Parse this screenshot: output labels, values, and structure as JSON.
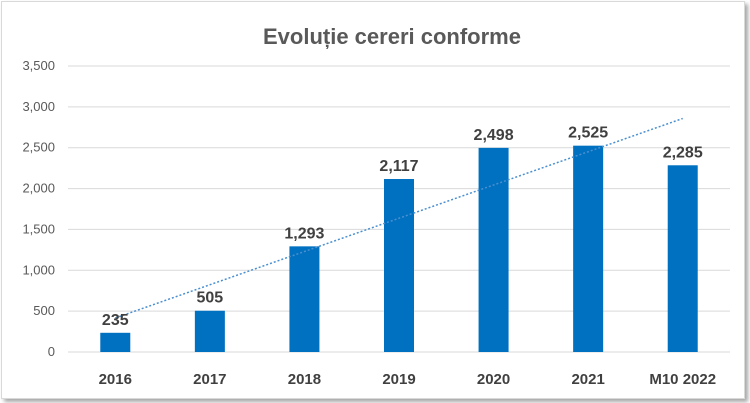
{
  "chart_data": {
    "type": "bar",
    "title": "Evoluție cereri conforme",
    "categories": [
      "2016",
      "2017",
      "2018",
      "2019",
      "2020",
      "2021",
      "M10 2022"
    ],
    "values": [
      235,
      505,
      1293,
      2117,
      2498,
      2525,
      2285
    ],
    "data_labels": [
      "235",
      "505",
      "1,293",
      "2,117",
      "2,498",
      "2,525",
      "2,285"
    ],
    "ylim": [
      0,
      3500
    ],
    "yticks": [
      0,
      500,
      1000,
      1500,
      2000,
      2500,
      3000,
      3500
    ],
    "ytick_labels": [
      "0",
      "500",
      "1,000",
      "1,500",
      "2,000",
      "2,500",
      "3,000",
      "3,500"
    ],
    "grid": true,
    "trendline": "linear",
    "colors": {
      "bar": "#0070c0",
      "trend": "#4a90d0",
      "grid": "#d9d9d9"
    }
  }
}
